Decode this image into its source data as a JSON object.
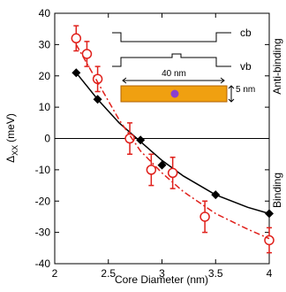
{
  "chart_data": {
    "type": "line",
    "xlabel": "Core Diameter (nm)",
    "ylabel": {
      "symbol": "Δ",
      "subscript": "XX",
      "unit": "(meV)"
    },
    "xlim": [
      2,
      4
    ],
    "xticks": [
      2,
      2.5,
      3,
      3.5,
      4
    ],
    "ylim": [
      -40,
      40
    ],
    "yticks": [
      -40,
      -30,
      -20,
      -10,
      0,
      10,
      20,
      30,
      40
    ],
    "zero_line": true,
    "series": [
      {
        "color": "#000000",
        "marker": "diamond",
        "linestyle": "none",
        "x": [
          2.2,
          2.4,
          2.8,
          3.0,
          3.5,
          4.0
        ],
        "values": [
          21,
          12.5,
          -0.5,
          -8.5,
          -18,
          -24
        ]
      },
      {
        "color": "#000000",
        "marker": "none",
        "linestyle": "solid",
        "x": [
          2.2,
          2.4,
          2.6,
          2.8,
          3.0,
          3.2,
          3.5,
          3.8,
          4.0
        ],
        "values": [
          21,
          12.5,
          5,
          -1,
          -7,
          -12,
          -18,
          -22,
          -24
        ]
      },
      {
        "color": "#e0201b",
        "marker": "circle",
        "linestyle": "none",
        "x": [
          2.2,
          2.3,
          2.4,
          2.7,
          2.9,
          3.1,
          3.4,
          4.0
        ],
        "values": [
          32,
          27,
          19,
          0,
          -10,
          -11,
          -25,
          -32.5
        ],
        "errors": [
          4,
          4,
          4,
          5,
          5,
          5,
          5,
          4
        ]
      },
      {
        "color": "#e0201b",
        "marker": "none",
        "linestyle": "dashdot",
        "x": [
          2.2,
          2.4,
          2.6,
          2.8,
          3.0,
          3.2,
          3.5,
          3.8,
          4.0
        ],
        "values": [
          30,
          18,
          6,
          -4,
          -11,
          -17,
          -24,
          -29,
          -32
        ]
      }
    ],
    "annotations": {
      "cb": "cb",
      "vb": "vb",
      "length": "40 nm",
      "width": "5 nm",
      "top_region": "Anti-binding",
      "bottom_region": "Binding"
    }
  }
}
